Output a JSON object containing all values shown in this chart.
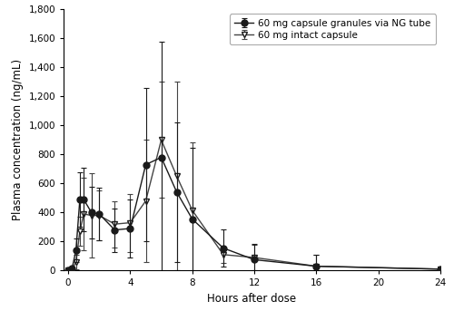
{
  "title": "",
  "xlabel": "Hours after dose",
  "ylabel": "Plasma concentration (ng/mL)",
  "xlim": [
    -0.3,
    24
  ],
  "ylim": [
    0,
    1800
  ],
  "yticks": [
    0,
    200,
    400,
    600,
    800,
    1000,
    1200,
    1400,
    1600,
    1800
  ],
  "ytick_labels": [
    "0",
    "200",
    "400",
    "600",
    "800",
    "1,000",
    "1,200",
    "1,400",
    "1,600",
    "1,800"
  ],
  "xticks": [
    0,
    4,
    8,
    12,
    16,
    20,
    24
  ],
  "series1": {
    "label": "60 mg capsule granules via NG tube",
    "x": [
      0,
      0.25,
      0.5,
      0.75,
      1,
      1.5,
      2,
      3,
      4,
      5,
      6,
      7,
      8,
      10,
      12,
      16,
      24
    ],
    "y": [
      0,
      15,
      140,
      490,
      490,
      400,
      390,
      280,
      290,
      730,
      780,
      540,
      355,
      155,
      75,
      30,
      10
    ],
    "yerr": [
      0,
      10,
      80,
      190,
      220,
      180,
      180,
      150,
      200,
      530,
      800,
      480,
      490,
      130,
      110,
      80,
      15
    ],
    "color": "#1a1a1a",
    "markersize": 5,
    "markerfacecolor": "#1a1a1a"
  },
  "series2": {
    "label": "60 mg intact capsule",
    "x": [
      0,
      0.25,
      0.5,
      0.75,
      1,
      1.5,
      2,
      3,
      4,
      5,
      6,
      7,
      8,
      10,
      12,
      16,
      24
    ],
    "y": [
      0,
      5,
      60,
      270,
      390,
      380,
      380,
      320,
      330,
      480,
      900,
      650,
      415,
      110,
      90,
      30,
      10
    ],
    "yerr": [
      0,
      5,
      50,
      100,
      250,
      290,
      170,
      160,
      200,
      420,
      400,
      650,
      470,
      55,
      90,
      80,
      10
    ],
    "color": "#444444",
    "markersize": 5,
    "markerfacecolor": "white",
    "markeredgecolor": "#1a1a1a"
  },
  "legend_loc": "upper right",
  "background_color": "#ffffff",
  "figsize": [
    5.0,
    3.43
  ],
  "dpi": 100
}
